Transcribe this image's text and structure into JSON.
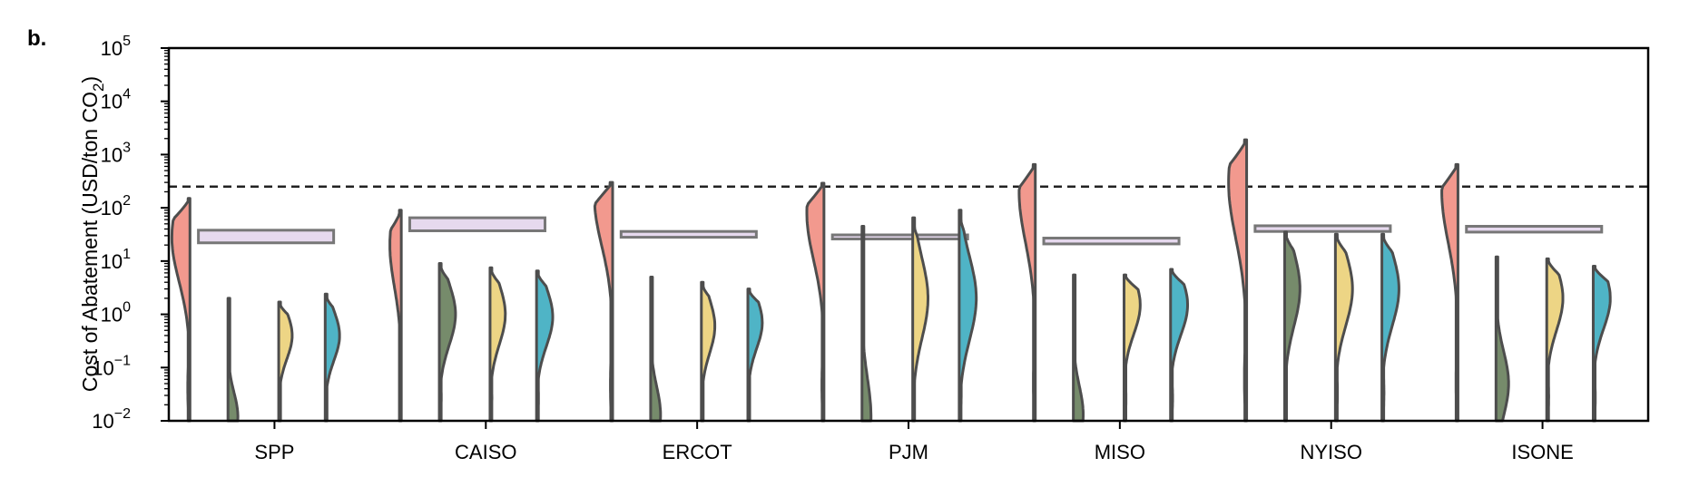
{
  "panel_label": "b.",
  "colors": {
    "reference_line": "#222222",
    "violin_outline": "#4d4d4d",
    "box_fill": "#e6d9ee",
    "box_edge": "#777777"
  },
  "chart_data": {
    "type": "violin",
    "title": "",
    "ylabel": "Cost of Abatement (USD/ton CO₂)",
    "ylabel_parts": {
      "pre": "Cost of Abatement (USD/ton CO",
      "sub": "2",
      "post": ")"
    },
    "xlabel": "",
    "y_scale": "log",
    "ylim": [
      0.01,
      100000
    ],
    "yticks": [
      {
        "mantissa": "10",
        "exp": "−2",
        "value": 0.01
      },
      {
        "mantissa": "10",
        "exp": "−1",
        "value": 0.1
      },
      {
        "mantissa": "10",
        "exp": "0",
        "value": 1
      },
      {
        "mantissa": "10",
        "exp": "1",
        "value": 10
      },
      {
        "mantissa": "10",
        "exp": "2",
        "value": 100
      },
      {
        "mantissa": "10",
        "exp": "3",
        "value": 1000
      },
      {
        "mantissa": "10",
        "exp": "4",
        "value": 10000
      },
      {
        "mantissa": "10",
        "exp": "5",
        "value": 100000
      }
    ],
    "categories": [
      "SPP",
      "CAISO",
      "ERCOT",
      "PJM",
      "MISO",
      "NYISO",
      "ISONE"
    ],
    "reference_line": 250,
    "series_colors": [
      "#f2998e",
      "#768b6b",
      "#edd585",
      "#4fb4c6"
    ],
    "box_range": [
      [
        22,
        38
      ],
      [
        37,
        65
      ],
      [
        28,
        36
      ],
      [
        26,
        31
      ],
      [
        21,
        27
      ],
      [
        36,
        46
      ],
      [
        35,
        45
      ]
    ],
    "violins": [
      [
        {
          "top": 150,
          "peak": 28,
          "width": 0.95
        },
        {
          "top": 2.0,
          "peak": 0.012,
          "width": 0.55
        },
        {
          "top": 1.7,
          "peak": 0.4,
          "width": 0.75
        },
        {
          "top": 2.4,
          "peak": 0.4,
          "width": 0.8
        }
      ],
      [
        {
          "top": 90,
          "peak": 20,
          "width": 0.6
        },
        {
          "top": 9,
          "peak": 1.0,
          "width": 0.9
        },
        {
          "top": 7.5,
          "peak": 1.0,
          "width": 0.85
        },
        {
          "top": 6.5,
          "peak": 0.9,
          "width": 0.9
        }
      ],
      [
        {
          "top": 300,
          "peak": 150,
          "width": 0.95
        },
        {
          "top": 5.0,
          "peak": 0.013,
          "width": 0.55
        },
        {
          "top": 4.0,
          "peak": 0.6,
          "width": 0.75
        },
        {
          "top": 3.0,
          "peak": 0.7,
          "width": 0.8
        }
      ],
      [
        {
          "top": 290,
          "peak": 80,
          "width": 0.9
        },
        {
          "top": 45,
          "peak": 0.012,
          "width": 0.5
        },
        {
          "top": 65,
          "peak": 2.0,
          "width": 0.85
        },
        {
          "top": 90,
          "peak": 2.0,
          "width": 0.95
        }
      ],
      [
        {
          "top": 650,
          "peak": 200,
          "width": 0.85
        },
        {
          "top": 5.5,
          "peak": 0.013,
          "width": 0.55
        },
        {
          "top": 5.5,
          "peak": 1.5,
          "width": 0.9
        },
        {
          "top": 7.0,
          "peak": 1.5,
          "width": 0.95
        }
      ],
      [
        {
          "top": 1900,
          "peak": 300,
          "width": 0.95
        },
        {
          "top": 35,
          "peak": 3.0,
          "width": 0.85
        },
        {
          "top": 32,
          "peak": 3.0,
          "width": 0.95
        },
        {
          "top": 32,
          "peak": 3.0,
          "width": 0.95
        }
      ],
      [
        {
          "top": 650,
          "peak": 200,
          "width": 0.85
        },
        {
          "top": 12,
          "peak": 0.05,
          "width": 0.7
        },
        {
          "top": 11,
          "peak": 2.0,
          "width": 0.9
        },
        {
          "top": 8.0,
          "peak": 2.0,
          "width": 0.95
        }
      ]
    ]
  }
}
